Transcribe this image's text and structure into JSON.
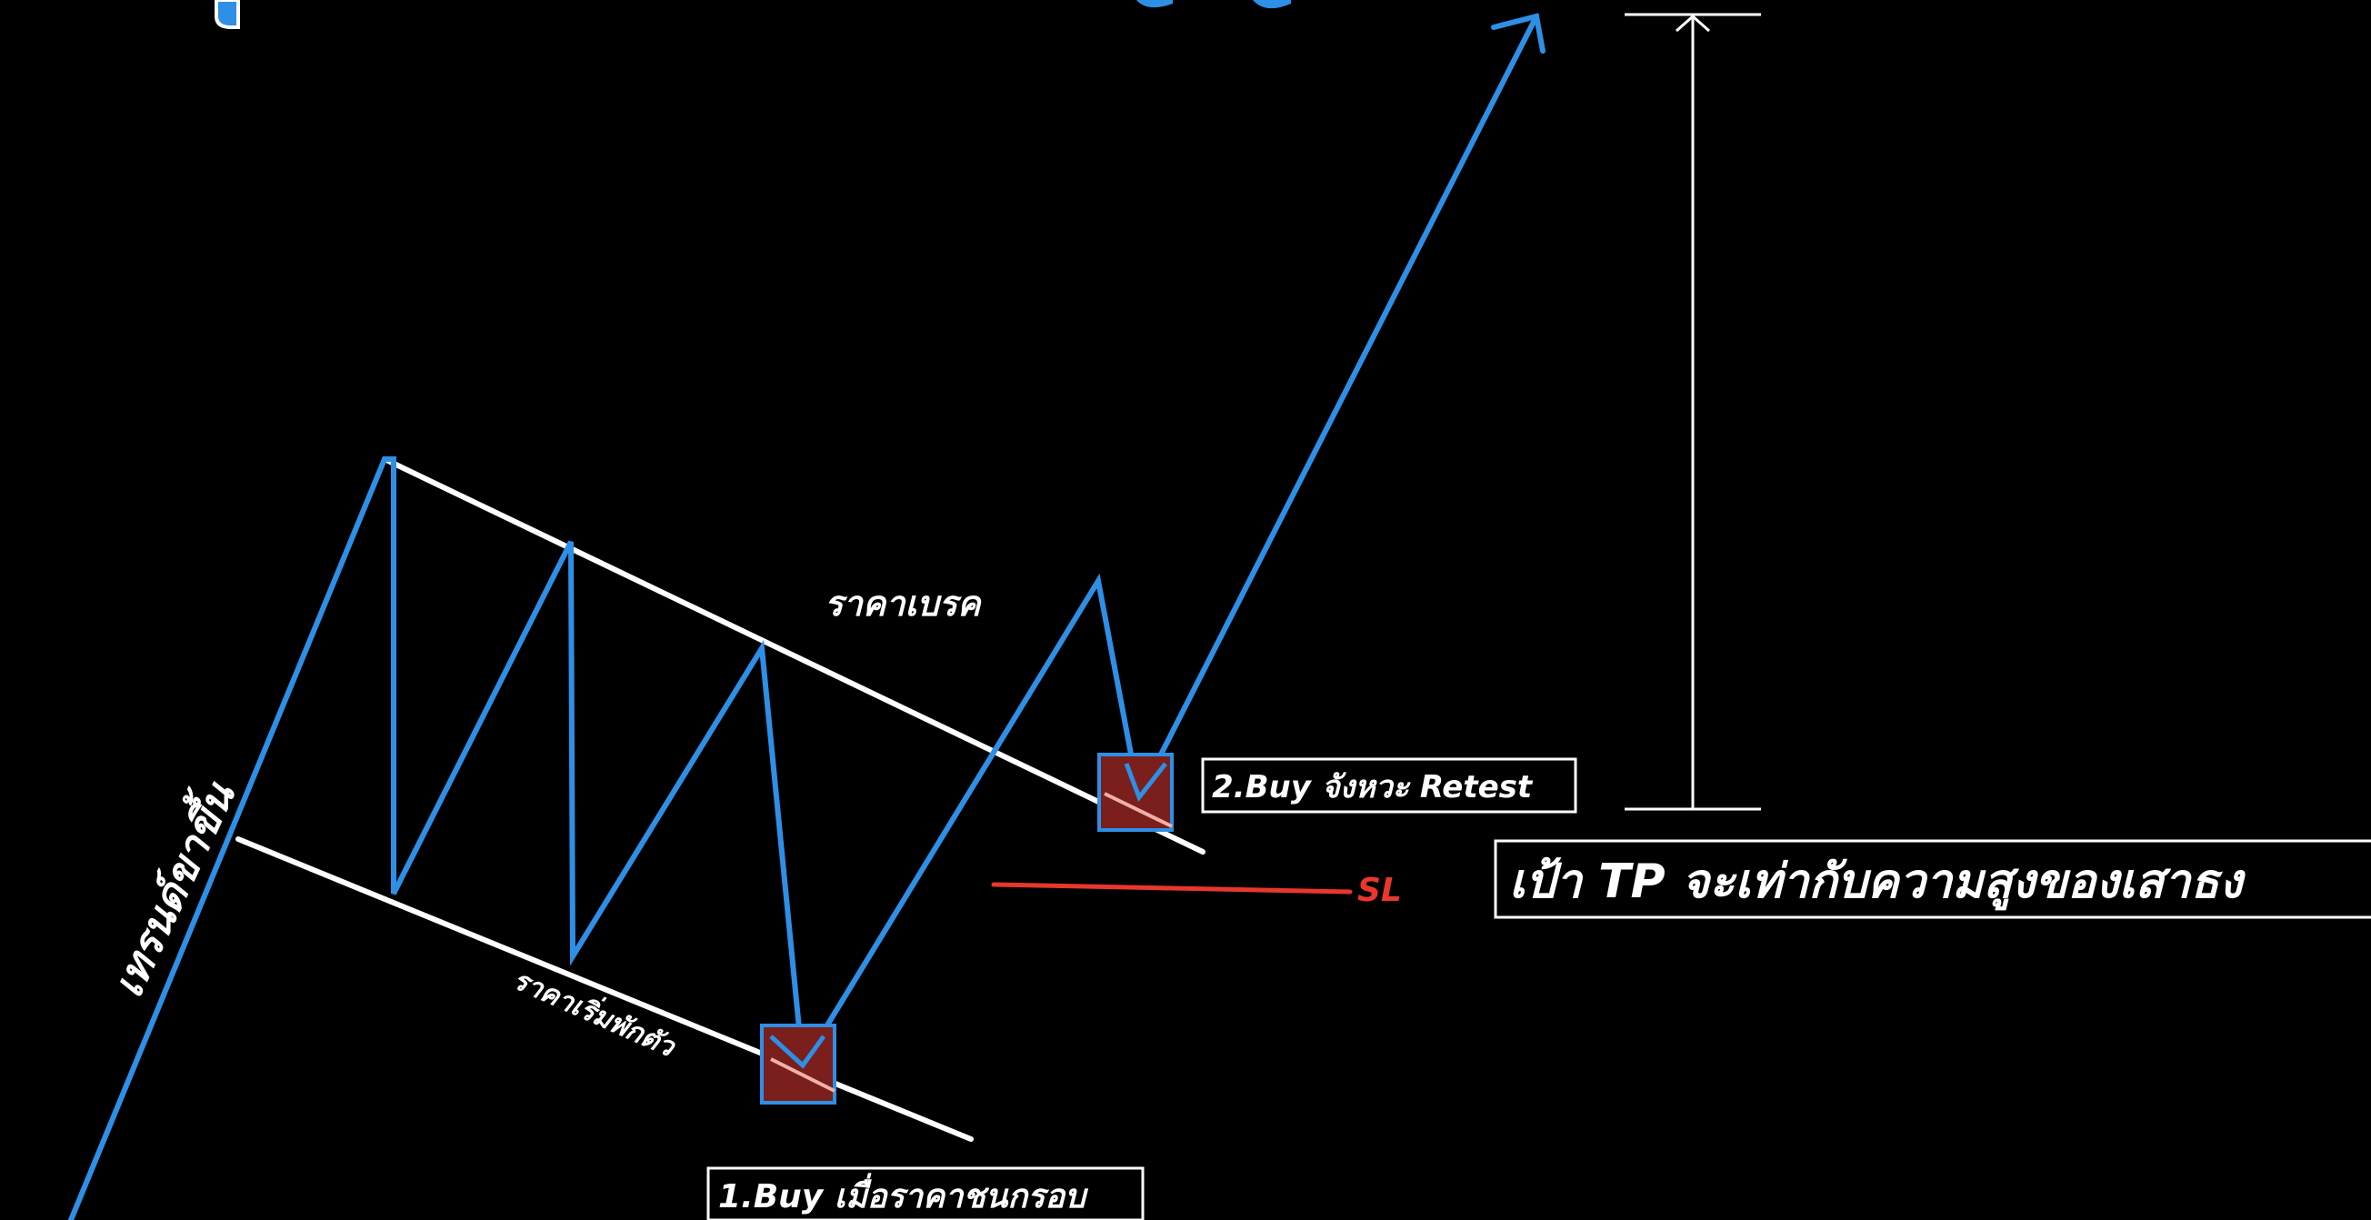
{
  "labels": {
    "uptrend": "เทรนด์ขาขึ้น",
    "pullback": "ราคาเริ่มพักตัว",
    "breakout": "ราคาเบรค",
    "buy1": "1.Buy  เมื่อราคาชนกรอบ",
    "buy2": "2.Buy  จังหวะ Retest",
    "stop_loss": "SL",
    "target": "เป้า TP  จะเท่ากับความสูงของเสาธง"
  },
  "colors": {
    "background": "#000000",
    "price_path": "#2e8fe6",
    "channel": "#ffffff",
    "stop_loss": "#e8372c",
    "entry_fill": "#7a1f1c",
    "entry_stroke": "#2e8fe6"
  },
  "icons": {
    "target_arrow": "arrow-up-icon",
    "height_measure": "double-arrow-vertical-icon"
  }
}
